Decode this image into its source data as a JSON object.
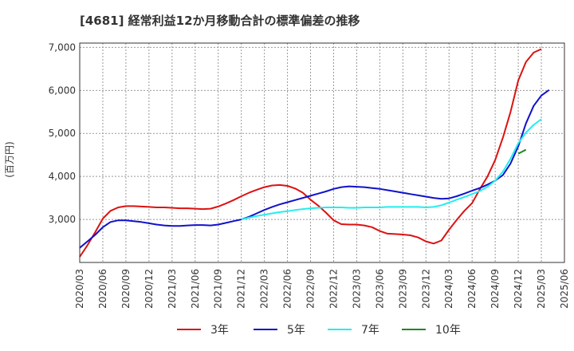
{
  "chart_data": {
    "type": "line",
    "title": "[4681]  経常利益12か月移動合計の標準偏差の推移",
    "ylabel": "(百万円)",
    "xlabel": "",
    "ylim": [
      2000,
      7100
    ],
    "yticks": [
      3000,
      4000,
      5000,
      6000,
      7000
    ],
    "ytick_labels": [
      "3,000",
      "4,000",
      "5,000",
      "6,000",
      "7,000"
    ],
    "x_start": "2020/03",
    "x_end": "2025/06",
    "xtick_labels": [
      "2020/03",
      "2020/06",
      "2020/09",
      "2020/12",
      "2021/03",
      "2021/06",
      "2021/09",
      "2021/12",
      "2022/03",
      "2022/06",
      "2022/09",
      "2022/12",
      "2023/03",
      "2023/06",
      "2023/09",
      "2023/12",
      "2024/03",
      "2024/06",
      "2024/09",
      "2024/12",
      "2025/03",
      "2025/06"
    ],
    "grid": true,
    "series": [
      {
        "name": "3年",
        "color": "#dd1111",
        "start": "2020/03",
        "values": [
          2130,
          2400,
          2700,
          3020,
          3200,
          3280,
          3310,
          3310,
          3300,
          3290,
          3280,
          3280,
          3270,
          3260,
          3260,
          3250,
          3240,
          3250,
          3300,
          3370,
          3450,
          3540,
          3620,
          3690,
          3750,
          3790,
          3800,
          3780,
          3720,
          3620,
          3460,
          3320,
          3160,
          2980,
          2890,
          2880,
          2880,
          2860,
          2820,
          2730,
          2670,
          2660,
          2650,
          2630,
          2580,
          2490,
          2440,
          2510,
          2760,
          2990,
          3200,
          3380,
          3700,
          4000,
          4380,
          4900,
          5500,
          6230,
          6660,
          6880,
          6960
        ]
      },
      {
        "name": "5年",
        "color": "#1111cc",
        "start": "2020/03",
        "values": [
          2340,
          2490,
          2640,
          2820,
          2940,
          2980,
          2980,
          2960,
          2940,
          2910,
          2880,
          2860,
          2850,
          2850,
          2860,
          2870,
          2870,
          2860,
          2880,
          2920,
          2960,
          3000,
          3060,
          3140,
          3220,
          3290,
          3350,
          3400,
          3450,
          3500,
          3550,
          3600,
          3650,
          3710,
          3750,
          3770,
          3760,
          3750,
          3730,
          3710,
          3680,
          3650,
          3620,
          3590,
          3560,
          3530,
          3500,
          3480,
          3490,
          3540,
          3600,
          3670,
          3730,
          3810,
          3900,
          4030,
          4300,
          4700,
          5230,
          5640,
          5880,
          6010
        ]
      },
      {
        "name": "7年",
        "color": "#22eeee",
        "start": "2021/12",
        "values": [
          3000,
          3040,
          3080,
          3110,
          3140,
          3170,
          3190,
          3220,
          3240,
          3260,
          3270,
          3280,
          3280,
          3280,
          3270,
          3270,
          3280,
          3280,
          3280,
          3290,
          3290,
          3290,
          3290,
          3290,
          3280,
          3290,
          3330,
          3390,
          3460,
          3520,
          3590,
          3660,
          3760,
          3900,
          4110,
          4410,
          4770,
          5020,
          5200,
          5330
        ]
      },
      {
        "name": "10年",
        "color": "#228822",
        "start": "2024/12",
        "values": [
          4530,
          4620
        ]
      }
    ]
  }
}
